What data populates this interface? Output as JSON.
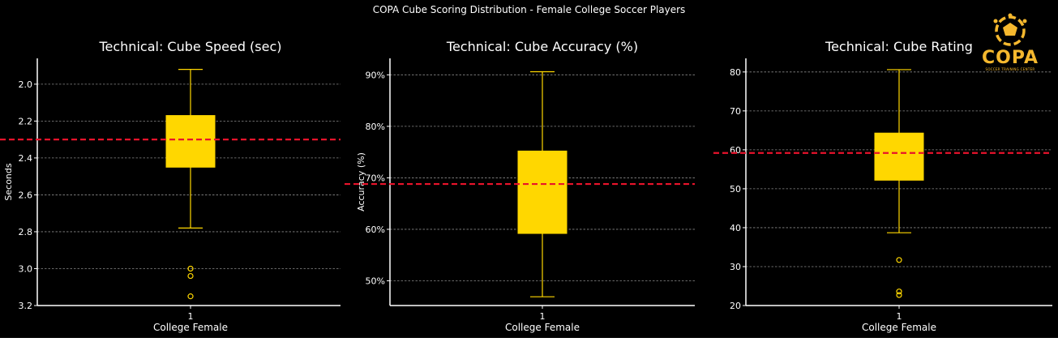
{
  "suptitle": "COPA Cube Scoring Distribution - Female College Soccer Players",
  "logo": {
    "word": "COPA",
    "tagline": "SOCCER TRAINING CENTER",
    "color": "#f5b82e"
  },
  "colors": {
    "background": "#000000",
    "box": "#ffd700",
    "reference_line": "#e8132b",
    "grid": "#8a8a8a",
    "axis": "#ffffff"
  },
  "chart_data": [
    {
      "type": "box",
      "title": "Technical: Cube Speed (sec)",
      "ylabel": "Seconds",
      "xlabel": "College Female",
      "categories": [
        "1"
      ],
      "ylim": [
        3.2,
        1.86
      ],
      "y_inverted": true,
      "yticks": [
        2.0,
        2.2,
        2.4,
        2.6,
        2.8,
        3.0,
        3.2
      ],
      "ytick_labels": [
        "2.0",
        "2.2",
        "2.4",
        "2.6",
        "2.8",
        "3.0",
        "3.2"
      ],
      "box": {
        "whisker_low": 1.92,
        "q1": 2.17,
        "q3": 2.45,
        "whisker_high": 2.78
      },
      "outliers": [
        3.0,
        3.04,
        3.15
      ],
      "reference_line": 2.3,
      "grid": true
    },
    {
      "type": "box",
      "title": "Technical: Cube Accuracy (%)",
      "ylabel": "Accuracy (%)",
      "xlabel": "College Female",
      "categories": [
        "1"
      ],
      "ylim": [
        45.2,
        93.2
      ],
      "yticks": [
        50,
        60,
        70,
        80,
        90
      ],
      "ytick_labels": [
        "50%",
        "60%",
        "70%",
        "80%",
        "90%"
      ],
      "box": {
        "whisker_low": 46.9,
        "q1": 59.2,
        "q3": 75.2,
        "whisker_high": 90.6
      },
      "outliers": [],
      "reference_line": 68.8,
      "grid": true
    },
    {
      "type": "box",
      "title": "Technical: Cube Rating",
      "ylabel": "",
      "xlabel": "College Female",
      "categories": [
        "1"
      ],
      "ylim": [
        20,
        83.5
      ],
      "yticks": [
        20,
        30,
        40,
        50,
        60,
        70,
        80
      ],
      "ytick_labels": [
        "20",
        "30",
        "40",
        "50",
        "60",
        "70",
        "80"
      ],
      "box": {
        "whisker_low": 38.7,
        "q1": 52.2,
        "q3": 64.3,
        "whisker_high": 80.6
      },
      "outliers": [
        31.7,
        23.6,
        22.7
      ],
      "reference_line": 59.2,
      "grid": true
    }
  ]
}
